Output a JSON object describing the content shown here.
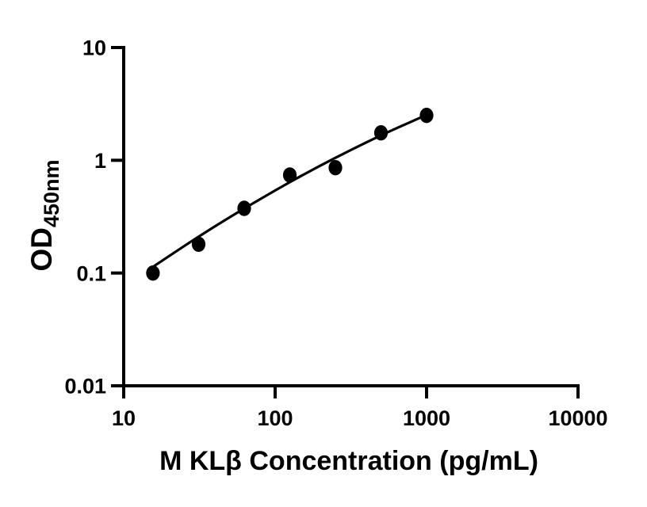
{
  "chart_data": {
    "type": "scatter",
    "title": "",
    "xlabel": "M KLβ Concentration (pg/mL)",
    "ylabel": "OD",
    "ylabel_sub": "450nm",
    "x_scale": "log",
    "y_scale": "log",
    "xlim": [
      10,
      10000
    ],
    "ylim": [
      0.01,
      10
    ],
    "grid": false,
    "legend": false,
    "x_ticks": [
      {
        "v": 10,
        "label": "10"
      },
      {
        "v": 100,
        "label": "100"
      },
      {
        "v": 1000,
        "label": "1000"
      },
      {
        "v": 10000,
        "label": "10000"
      }
    ],
    "y_ticks": [
      {
        "v": 10,
        "label": "10"
      },
      {
        "v": 1,
        "label": "1"
      },
      {
        "v": 0.1,
        "label": "0.1"
      },
      {
        "v": 0.01,
        "label": "0.01"
      }
    ],
    "series": [
      {
        "name": "standard-curve-points",
        "marker": "filled-circle",
        "points": [
          {
            "x": 15.6,
            "y": 0.1
          },
          {
            "x": 31.25,
            "y": 0.18
          },
          {
            "x": 62.5,
            "y": 0.375
          },
          {
            "x": 125,
            "y": 0.74
          },
          {
            "x": 250,
            "y": 0.86
          },
          {
            "x": 500,
            "y": 1.75
          },
          {
            "x": 1000,
            "y": 2.5
          }
        ]
      }
    ],
    "fit_curve": {
      "name": "four-parameter-fit-line",
      "points": [
        {
          "x": 15.85,
          "y": 0.115
        },
        {
          "x": 31.6,
          "y": 0.212
        },
        {
          "x": 63.1,
          "y": 0.376
        },
        {
          "x": 125.9,
          "y": 0.643
        },
        {
          "x": 251,
          "y": 1.054
        },
        {
          "x": 501,
          "y": 1.665
        },
        {
          "x": 1000,
          "y": 2.529
        }
      ]
    },
    "colors": {
      "marker": "#000000",
      "curve": "#000000",
      "axis": "#000000",
      "text": "#000000",
      "background": "#ffffff"
    }
  }
}
